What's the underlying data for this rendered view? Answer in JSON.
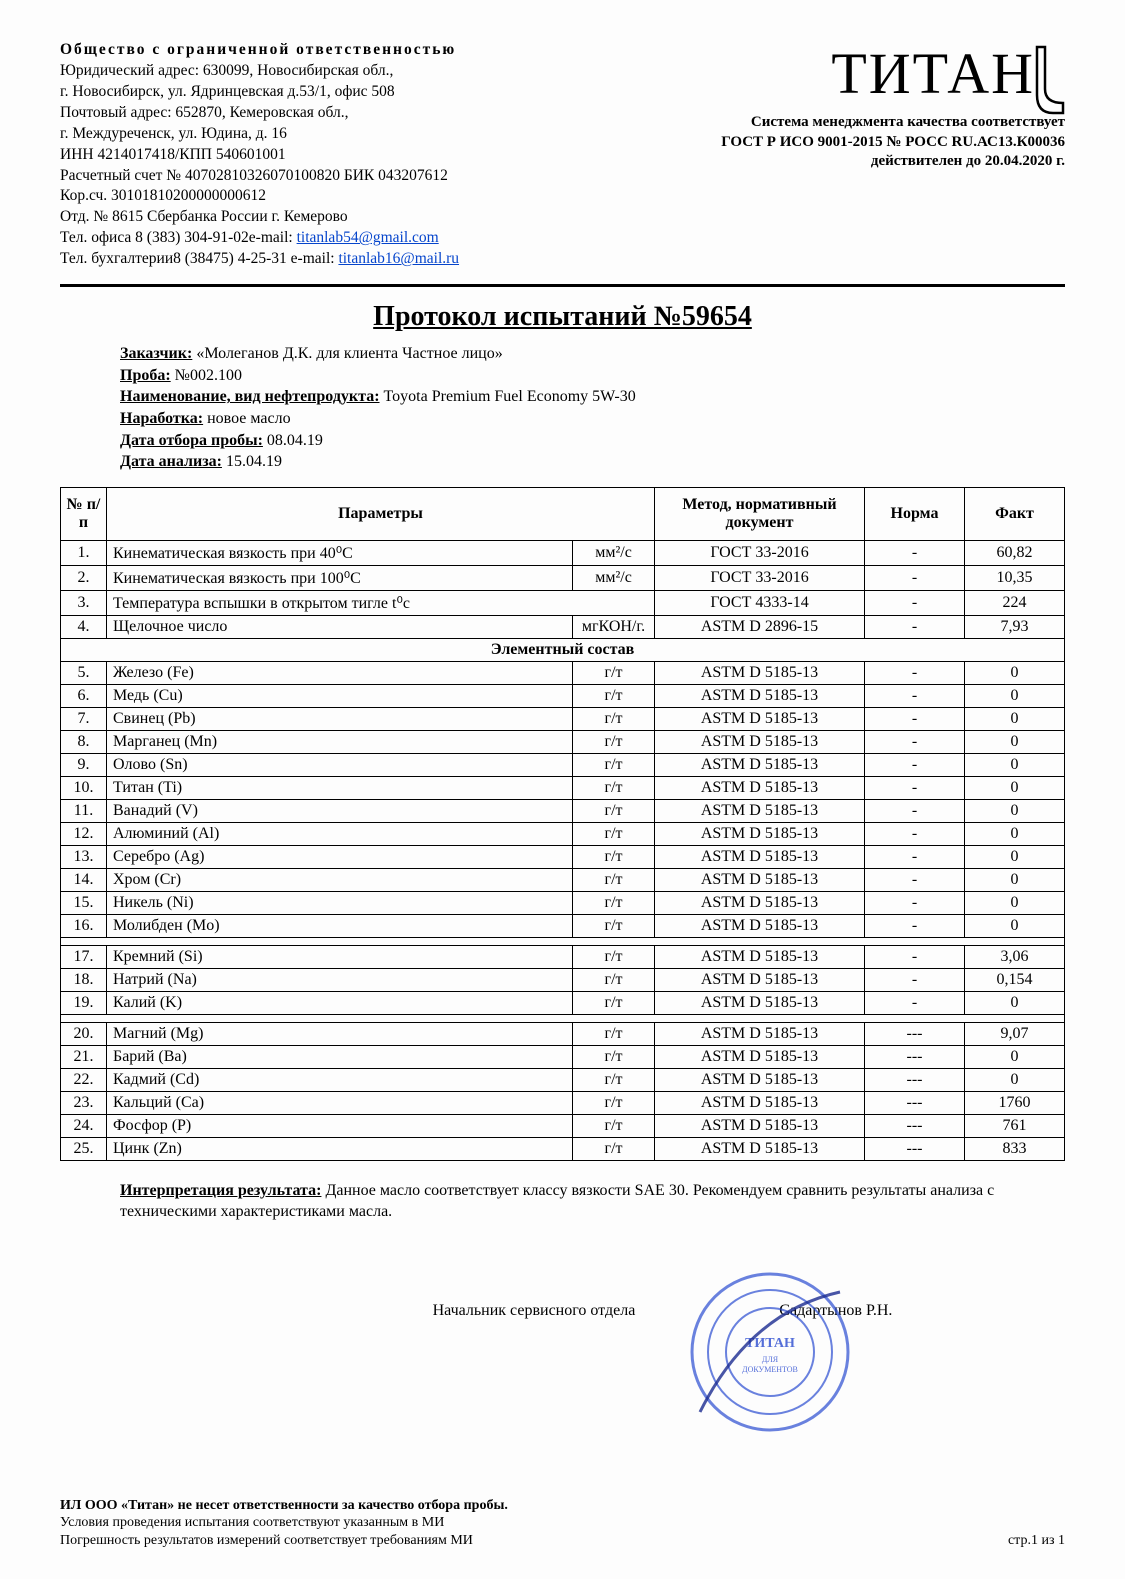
{
  "colors": {
    "text": "#000000",
    "link": "#0645cc",
    "stamp": "#2a4bd0",
    "bg": "#fdfdfd"
  },
  "fonts": {
    "family": "Times New Roman",
    "body_size": 16,
    "title_size": 28,
    "logo_size": 58
  },
  "org": {
    "name": "Общество   с   ограниченной    ответственностью",
    "line1": "Юридический адрес: 630099, Новосибирская обл.,",
    "line2": "г. Новосибирск, ул. Ядринцевская д.53/1, офис 508",
    "line3": "Почтовый адрес: 652870, Кемеровская обл.,",
    "line4": "г. Междуреченск, ул. Юдина, д. 16",
    "line5": "ИНН 4214017418/КПП 540601001",
    "line6": "Расчетный счет № 40702810326070100820 БИК  043207612",
    "line7": "Кор.сч. 30101810200000000612",
    "line8": "Отд. № 8615 Сбербанка России г. Кемерово",
    "tel1_prefix": "Тел. офиса 8 (383) 304-91-02e-mail: ",
    "email1": "titanlab54@gmail.com",
    "tel2_prefix": "Тел. бухгалтерии8 (38475) 4-25-31 e-mail: ",
    "email2": "titanlab16@mail.ru"
  },
  "logo": {
    "text": "ТИТАН"
  },
  "logo_sub": {
    "l1": "Система менеджмента качества соответствует",
    "l2": "ГОСТ Р ИСО 9001-2015 № РОСС RU.АС13.К00036",
    "l3": "действителен до 20.04.2020 г."
  },
  "title": "Протокол испытаний №59654",
  "meta": {
    "customer_label": "Заказчик:",
    "customer": " «Молеганов Д.К. для клиента Частное лицо»",
    "sample_label": "Проба:",
    "sample": " №002.100",
    "product_label": "Наименование, вид нефтепродукта:",
    "product": " Toyota Premium Fuel Economy 5W-30",
    "hours_label": "Наработка:",
    "hours": " новое масло",
    "date1_label": "Дата отбора пробы:",
    "date1": " 08.04.19",
    "date2_label": "Дата анализа:",
    "date2": " 15.04.19"
  },
  "table": {
    "headers": {
      "num": "№ п/п",
      "param": "Параметры",
      "method": "Метод, нормативный документ",
      "norm": "Норма",
      "fact": "Факт"
    },
    "section": "Элементный состав",
    "rows1": [
      {
        "n": "1.",
        "p": "Кинематическая вязкость при 40⁰С",
        "u": "мм²/с",
        "m": "ГОСТ 33-2016",
        "no": "-",
        "f": "60,82"
      },
      {
        "n": "2.",
        "p": "Кинематическая вязкость при 100⁰С",
        "u": "мм²/с",
        "m": "ГОСТ 33-2016",
        "no": "-",
        "f": "10,35"
      },
      {
        "n": "3.",
        "p": "Температура вспышки в открытом тигле t⁰с",
        "u": "",
        "m": "ГОСТ 4333-14",
        "no": "-",
        "f": "224"
      },
      {
        "n": "4.",
        "p": "Щелочное число",
        "u": "мгКОН/г.",
        "m": "ASTM D 2896-15",
        "no": "-",
        "f": "7,93"
      }
    ],
    "rows2": [
      {
        "n": "5.",
        "p": "Железо (Fe)",
        "u": "г/т",
        "m": "ASTM D 5185-13",
        "no": "-",
        "f": "0"
      },
      {
        "n": "6.",
        "p": "Медь (Cu)",
        "u": "г/т",
        "m": "ASTM D 5185-13",
        "no": "-",
        "f": "0"
      },
      {
        "n": "7.",
        "p": "Свинец (Pb)",
        "u": "г/т",
        "m": "ASTM D 5185-13",
        "no": "-",
        "f": "0"
      },
      {
        "n": "8.",
        "p": "Марганец (Mn)",
        "u": "г/т",
        "m": "ASTM D 5185-13",
        "no": "-",
        "f": "0"
      },
      {
        "n": "9.",
        "p": "Олово (Sn)",
        "u": "г/т",
        "m": "ASTM D 5185-13",
        "no": "-",
        "f": "0"
      },
      {
        "n": "10.",
        "p": "Титан (Ti)",
        "u": "г/т",
        "m": "ASTM D 5185-13",
        "no": "-",
        "f": "0"
      },
      {
        "n": "11.",
        "p": "Ванадий (V)",
        "u": "г/т",
        "m": "ASTM D 5185-13",
        "no": "-",
        "f": "0"
      },
      {
        "n": "12.",
        "p": "Алюминий (Al)",
        "u": "г/т",
        "m": "ASTM D 5185-13",
        "no": "-",
        "f": "0"
      },
      {
        "n": "13.",
        "p": "Серебро (Ag)",
        "u": "г/т",
        "m": "ASTM D 5185-13",
        "no": "-",
        "f": "0"
      },
      {
        "n": "14.",
        "p": "Хром (Cr)",
        "u": "г/т",
        "m": "ASTM D 5185-13",
        "no": "-",
        "f": "0"
      },
      {
        "n": "15.",
        "p": "Никель (Ni)",
        "u": "г/т",
        "m": "ASTM D 5185-13",
        "no": "-",
        "f": "0"
      },
      {
        "n": "16.",
        "p": "Молибден (Mo)",
        "u": "г/т",
        "m": "ASTM D 5185-13",
        "no": "-",
        "f": "0"
      }
    ],
    "rows3": [
      {
        "n": "17.",
        "p": "Кремний (Si)",
        "u": "г/т",
        "m": "ASTM D 5185-13",
        "no": "-",
        "f": "3,06"
      },
      {
        "n": "18.",
        "p": "Натрий (Na)",
        "u": "г/т",
        "m": "ASTM D 5185-13",
        "no": "-",
        "f": "0,154"
      },
      {
        "n": "19.",
        "p": "Калий (K)",
        "u": "г/т",
        "m": "ASTM D 5185-13",
        "no": "-",
        "f": "0"
      }
    ],
    "rows4": [
      {
        "n": "20.",
        "p": "Магний (Mg)",
        "u": "г/т",
        "m": "ASTM D 5185-13",
        "no": "---",
        "f": "9,07"
      },
      {
        "n": "21.",
        "p": "Барий (Ba)",
        "u": "г/т",
        "m": "ASTM D 5185-13",
        "no": "---",
        "f": "0"
      },
      {
        "n": "22.",
        "p": "Кадмий (Cd)",
        "u": "г/т",
        "m": "ASTM D 5185-13",
        "no": "---",
        "f": "0"
      },
      {
        "n": "23.",
        "p": "Кальций (Ca)",
        "u": "г/т",
        "m": "ASTM D 5185-13",
        "no": "---",
        "f": "1760"
      },
      {
        "n": "24.",
        "p": "Фосфор (P)",
        "u": "г/т",
        "m": "ASTM D 5185-13",
        "no": "---",
        "f": "761"
      },
      {
        "n": "25.",
        "p": "Цинк (Zn)",
        "u": "г/т",
        "m": "ASTM D 5185-13",
        "no": "---",
        "f": "833"
      }
    ]
  },
  "interp": {
    "label": "Интерпретация результата:",
    "text": " Данное масло соответствует классу вязкости SAE 30. Рекомендуем сравнить результаты анализа с техническими характеристиками масла."
  },
  "sign": {
    "role": "Начальник сервисного отдела",
    "name": "Садартынов Р.Н."
  },
  "footer": {
    "l1": "ИЛ ООО «Титан» не несет ответственности за качество отбора пробы.",
    "l2": "Условия проведения испытания соответствуют указанным в МИ",
    "l3": "Погрешность результатов измерений соответствует требованиям МИ",
    "pagenum": "стр.1 из 1"
  }
}
